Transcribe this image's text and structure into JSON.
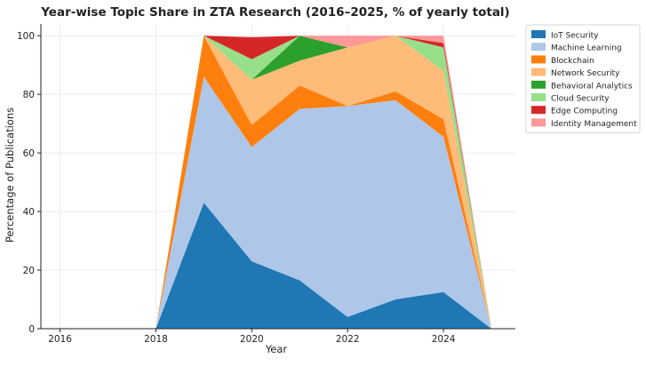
{
  "chart_data": {
    "type": "area",
    "stacked": true,
    "title": "Year-wise Topic Share in ZTA Research (2016–2025, % of yearly total)",
    "xlabel": "Year",
    "ylabel": "Percentage of Publications",
    "x": [
      2016,
      2017,
      2018,
      2019,
      2020,
      2021,
      2022,
      2023,
      2024,
      2025
    ],
    "xticks": [
      2016,
      2018,
      2020,
      2022,
      2024
    ],
    "yticks": [
      0,
      20,
      40,
      60,
      80,
      100
    ],
    "xlim": [
      2015.6,
      2025.5
    ],
    "ylim": [
      0,
      104
    ],
    "grid": true,
    "legend_position": "right",
    "series": [
      {
        "name": "IoT Security",
        "color": "#1f77b4",
        "values": [
          0,
          0,
          0,
          43,
          23,
          16.5,
          4,
          10,
          12.5,
          0
        ]
      },
      {
        "name": "Machine Learning",
        "color": "#aec7e8",
        "values": [
          0,
          0,
          0,
          43,
          39,
          58.5,
          72,
          68,
          53,
          0
        ]
      },
      {
        "name": "Blockchain",
        "color": "#ff7f0e",
        "values": [
          0,
          0,
          0,
          14,
          7.5,
          8,
          0,
          3,
          6,
          0
        ]
      },
      {
        "name": "Network Security",
        "color": "#ffbb78",
        "values": [
          0,
          0,
          0,
          0,
          15.5,
          8.5,
          20,
          19,
          16.5,
          0
        ]
      },
      {
        "name": "Behavioral Analytics",
        "color": "#2ca02c",
        "values": [
          0,
          0,
          0,
          0,
          0,
          8.5,
          0,
          0,
          0,
          0
        ]
      },
      {
        "name": "Cloud Security",
        "color": "#98df8a",
        "values": [
          0,
          0,
          0,
          0,
          7,
          0,
          0,
          0,
          8,
          0
        ]
      },
      {
        "name": "Edge Computing",
        "color": "#d62728",
        "values": [
          0,
          0,
          0,
          0,
          7.5,
          0,
          0,
          0,
          1.5,
          0
        ]
      },
      {
        "name": "Identity Management",
        "color": "#ff9896",
        "values": [
          0,
          0,
          0,
          0,
          0,
          0,
          4,
          0,
          2.5,
          0
        ]
      }
    ]
  }
}
